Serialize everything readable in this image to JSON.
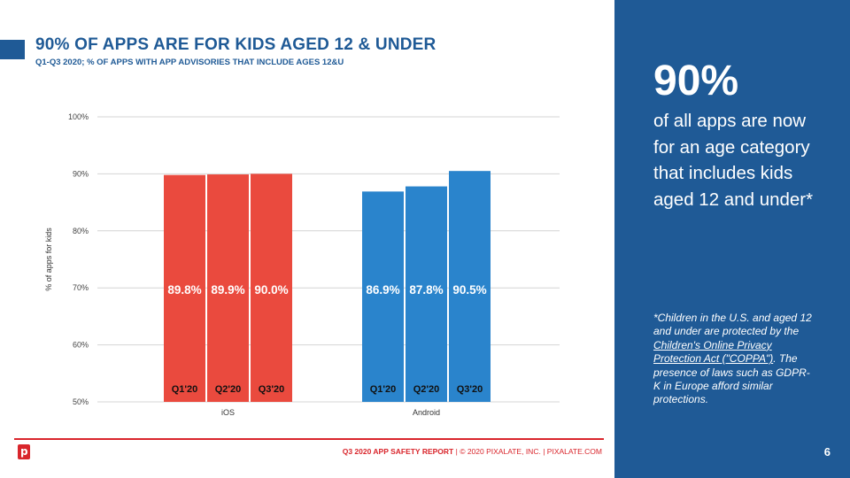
{
  "header": {
    "title": "90% OF APPS ARE FOR KIDS AGED 12 & UNDER",
    "subtitle": "Q1-Q3 2020; % OF APPS WITH APP ADVISORIES THAT INCLUDE AGES 12&U"
  },
  "chart_data": {
    "type": "bar",
    "groups": [
      "iOS",
      "Android"
    ],
    "quarters": [
      "Q1'20",
      "Q2'20",
      "Q3'20"
    ],
    "series": [
      {
        "group": "iOS",
        "values": [
          89.8,
          89.9,
          90.0
        ],
        "labels": [
          "89.8%",
          "89.9%",
          "90.0%"
        ],
        "color": "#ea4a3e"
      },
      {
        "group": "Android",
        "values": [
          86.9,
          87.8,
          90.5
        ],
        "labels": [
          "86.9%",
          "87.8%",
          "90.5%"
        ],
        "color": "#2a84cc"
      }
    ],
    "ylabel": "% of apps for kids",
    "ylim": [
      50,
      100
    ],
    "yticks": [
      50,
      60,
      70,
      80,
      90,
      100
    ],
    "ytick_labels": [
      "50%",
      "60%",
      "70%",
      "80%",
      "90%",
      "100%"
    ],
    "grid": true
  },
  "panel": {
    "stat": "90%",
    "description": "of all apps are now for an age category that includes kids aged 12 and under*",
    "footnote_intro": "*Children in the U.S. and aged 12 and under are protected by the ",
    "footnote_link": "Children's Online Privacy Protection Act (\"COPPA\")",
    "footnote_rest": ". The presence of laws such as GDPR-K in Europe afford similar protections.",
    "page_number": "6"
  },
  "footer": {
    "logo_letter": "p",
    "report": "Q3 2020 APP SAFETY REPORT",
    "sep": "|",
    "copyright": "© 2020 PIXALATE, INC.",
    "site": "PIXALATE.COM"
  },
  "colors": {
    "brand_blue": "#1f5a96",
    "brand_red": "#d9262c",
    "ios_bar": "#ea4a3e",
    "android_bar": "#2a84cc"
  }
}
